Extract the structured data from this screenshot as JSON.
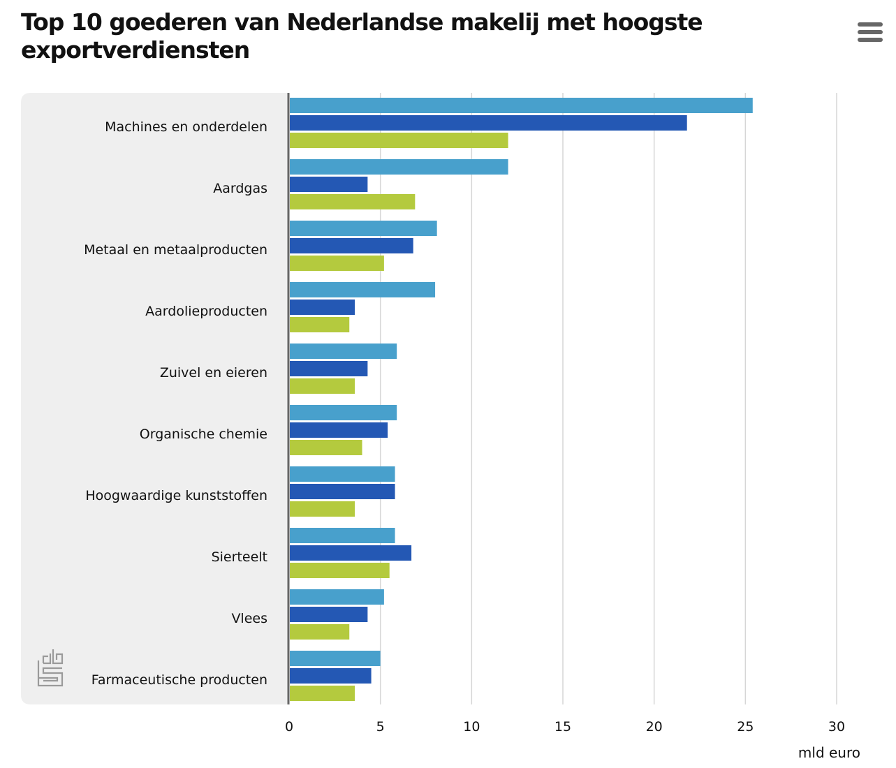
{
  "header": {
    "title": "Top 10 goederen van Nederlandse makelij met hoogste exportverdiensten",
    "menu_icon": "hamburger-menu-icon"
  },
  "colors": {
    "series": [
      "#48a0cc",
      "#2458b4",
      "#b4ca3e"
    ],
    "panel_background": "#efefef",
    "baseline": "#666666",
    "gridline": "#d6d6d6"
  },
  "logo": {
    "icon": "cbs-logo-icon"
  },
  "chart_data": {
    "type": "bar",
    "orientation": "horizontal",
    "categories": [
      "Machines en onderdelen",
      "Aardgas",
      "Metaal en metaalproducten",
      "Aardolieproducten",
      "Zuivel en eieren",
      "Organische chemie",
      "Hoogwaardige kunststoffen",
      "Sierteelt",
      "Vlees",
      "Farmaceutische producten"
    ],
    "series": [
      {
        "values": [
          25.4,
          12.0,
          8.1,
          8.0,
          5.9,
          5.9,
          5.8,
          5.8,
          5.2,
          5.0
        ]
      },
      {
        "values": [
          21.8,
          4.3,
          6.8,
          3.6,
          4.3,
          5.4,
          5.8,
          6.7,
          4.3,
          4.5
        ]
      },
      {
        "values": [
          12.0,
          6.9,
          5.2,
          3.3,
          3.6,
          4.0,
          3.6,
          5.5,
          3.3,
          3.6
        ]
      }
    ],
    "xlim": [
      0,
      30
    ],
    "xticks": [
      0,
      5,
      10,
      15,
      20,
      25,
      30
    ],
    "xlabel": "mld euro",
    "grid": true,
    "legend": "none"
  }
}
